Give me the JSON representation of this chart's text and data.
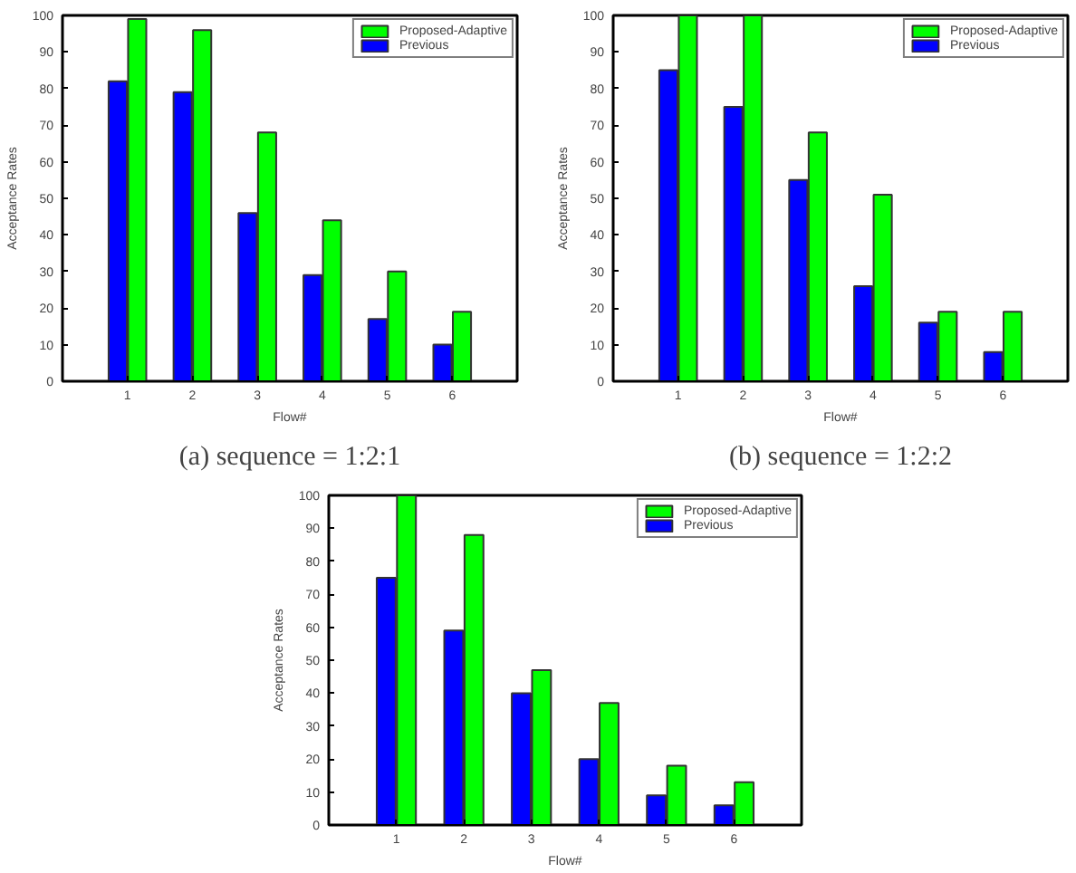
{
  "chart_data": [
    {
      "type": "bar",
      "title": "(a) sequence = 1:2:1",
      "xlabel": "Flow#",
      "ylabel": "Acceptance Rates",
      "categories": [
        "1",
        "2",
        "3",
        "4",
        "5",
        "6"
      ],
      "ylim": [
        0,
        100
      ],
      "yticks": [
        0,
        10,
        20,
        30,
        40,
        50,
        60,
        70,
        80,
        90,
        100
      ],
      "grid": false,
      "legend": "top right",
      "series": [
        {
          "name": "Previous",
          "color": "#0000ff",
          "values": [
            82,
            79,
            46,
            29,
            17,
            10
          ]
        },
        {
          "name": "Proposed-Adaptive",
          "color": "#00ff00",
          "values": [
            99,
            96,
            68,
            44,
            30,
            19
          ]
        }
      ]
    },
    {
      "type": "bar",
      "title": "(b) sequence = 1:2:2",
      "xlabel": "Flow#",
      "ylabel": "Acceptance Rates",
      "categories": [
        "1",
        "2",
        "3",
        "4",
        "5",
        "6"
      ],
      "ylim": [
        0,
        100
      ],
      "yticks": [
        0,
        10,
        20,
        30,
        40,
        50,
        60,
        70,
        80,
        90,
        100
      ],
      "grid": false,
      "legend": "top right",
      "series": [
        {
          "name": "Previous",
          "color": "#0000ff",
          "values": [
            85,
            75,
            55,
            26,
            16,
            8
          ]
        },
        {
          "name": "Proposed-Adaptive",
          "color": "#00ff00",
          "values": [
            100,
            100,
            68,
            51,
            19,
            19
          ]
        }
      ]
    },
    {
      "type": "bar",
      "xlabel": "Flow#",
      "ylabel": "Acceptance Rates",
      "categories": [
        "1",
        "2",
        "3",
        "4",
        "5",
        "6"
      ],
      "ylim": [
        0,
        100
      ],
      "yticks": [
        0,
        10,
        20,
        30,
        40,
        50,
        60,
        70,
        80,
        90,
        100
      ],
      "grid": false,
      "legend": "top right",
      "series": [
        {
          "name": "Previous",
          "color": "#0000ff",
          "values": [
            75,
            59,
            40,
            20,
            9,
            6
          ]
        },
        {
          "name": "Proposed-Adaptive",
          "color": "#00ff00",
          "values": [
            100,
            88,
            47,
            37,
            18,
            13
          ]
        }
      ]
    }
  ]
}
